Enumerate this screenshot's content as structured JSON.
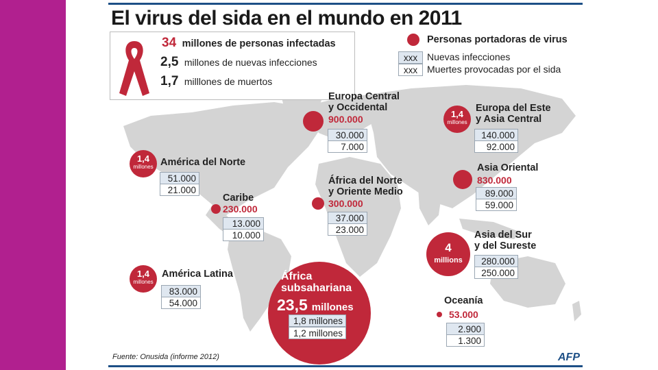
{
  "title": "El virus del sida en el mundo en 2011",
  "legend": {
    "summary": [
      {
        "value": "34",
        "text": "millones de personas infectadas"
      },
      {
        "value": "2,5",
        "text": "millones de nuevas infecciones"
      },
      {
        "value": "1,7",
        "text": "milllones de muertos"
      }
    ],
    "circle_label": "Personas portadoras de virus",
    "box_placeholder": "xxx",
    "new_label": "Nuevas infecciones",
    "deaths_label": "Muertes provocadas por el sida"
  },
  "chart_data": {
    "type": "map",
    "title": "El virus del sida en el mundo en 2011",
    "regions": [
      {
        "name_lines": [
          "Europa Central",
          "y Occidental"
        ],
        "carriers": "900.000",
        "new": "30.000",
        "deaths": "7.000"
      },
      {
        "name_lines": [
          "Europa del Este",
          "y Asia Central"
        ],
        "carriers_circle": [
          "1,4",
          "millones"
        ],
        "new": "140.000",
        "deaths": "92.000"
      },
      {
        "name_lines": [
          "América del Norte"
        ],
        "carriers_circle": [
          "1,4",
          "millones"
        ],
        "new": "51.000",
        "deaths": "21.000"
      },
      {
        "name_lines": [
          "Asia Oriental"
        ],
        "carriers": "830.000",
        "new": "89.000",
        "deaths": "59.000"
      },
      {
        "name_lines": [
          "África del Norte",
          "y Oriente Medio"
        ],
        "carriers": "300.000",
        "new": "37.000",
        "deaths": "23.000"
      },
      {
        "name_lines": [
          "Caribe"
        ],
        "carriers": "230.000",
        "new": "13.000",
        "deaths": "10.000"
      },
      {
        "name_lines": [
          "Asia del Sur",
          "y del Sureste"
        ],
        "carriers_circle": [
          "4",
          "millions"
        ],
        "new": "280.000",
        "deaths": "250.000"
      },
      {
        "name_lines": [
          "América Latina"
        ],
        "carriers_circle": [
          "1,4",
          "millones"
        ],
        "new": "83.000",
        "deaths": "54.000"
      },
      {
        "name_lines": [
          "África",
          "subsahariana"
        ],
        "carriers_big": {
          "value": "23,5",
          "unit": "millones"
        },
        "new": "1,8 millones",
        "deaths": "1,2 millones"
      },
      {
        "name_lines": [
          "Oceanía"
        ],
        "carriers": "53.000",
        "new": "2.900",
        "deaths": "1.300"
      }
    ]
  },
  "source": "Fuente: Onusida (informe 2012)",
  "logo": "AFP",
  "colors": {
    "accent": "#c0283a",
    "sidebar": "#b1208f",
    "map": "#d4d4d4",
    "rule": "#1d4f86"
  }
}
